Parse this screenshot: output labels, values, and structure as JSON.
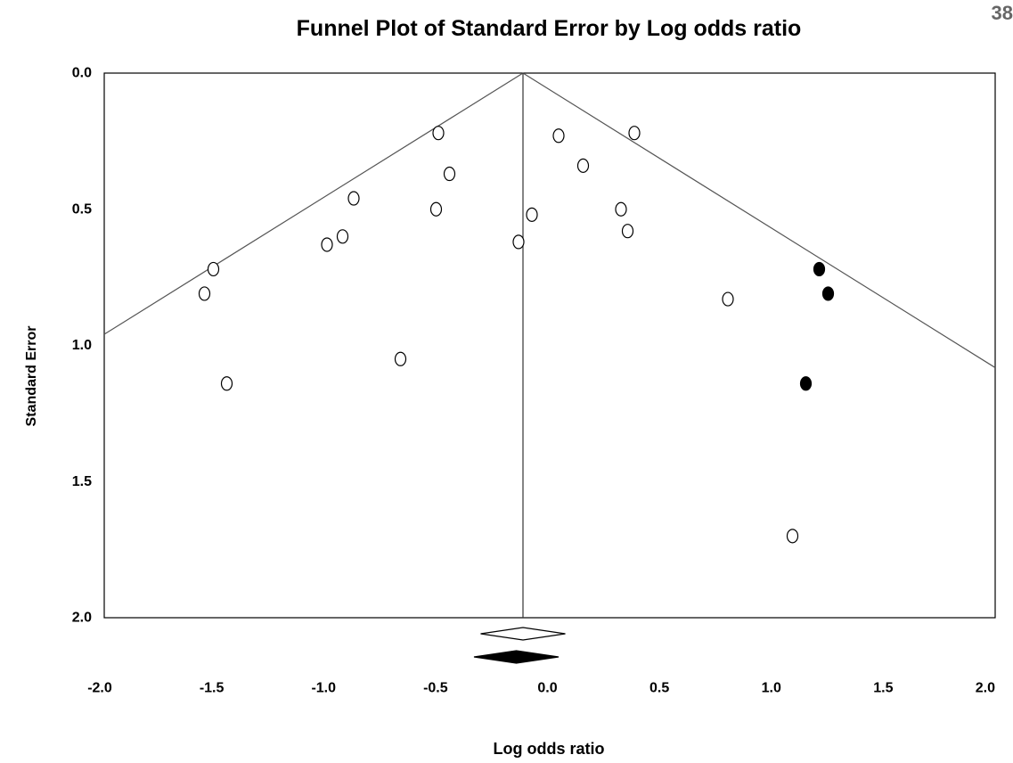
{
  "page_number": "38",
  "chart_data": {
    "type": "scatter",
    "title": "Funnel Plot of Standard Error by Log odds ratio",
    "xlabel": "Log odds ratio",
    "ylabel": "Standard Error",
    "xlim": [
      -2.0,
      2.0
    ],
    "ylim": [
      0.0,
      2.0
    ],
    "y_inverted": true,
    "x_ticks": [
      "-2.0",
      "-1.5",
      "-1.0",
      "-0.5",
      "0.0",
      "0.5",
      "1.0",
      "1.5",
      "2.0"
    ],
    "y_ticks": [
      "0.0",
      "0.5",
      "1.0",
      "1.5",
      "2.0"
    ],
    "grid": false,
    "funnel": {
      "apex_x": -0.12,
      "apex_y": 0.0,
      "half_width_factor": 1.96
    },
    "series": [
      {
        "marker": "open-circle",
        "points": [
          [
            -0.5,
            0.22
          ],
          [
            -0.45,
            0.37
          ],
          [
            0.04,
            0.23
          ],
          [
            0.38,
            0.22
          ],
          [
            0.15,
            0.34
          ],
          [
            -0.88,
            0.46
          ],
          [
            -0.51,
            0.5
          ],
          [
            -0.08,
            0.52
          ],
          [
            0.32,
            0.5
          ],
          [
            0.35,
            0.58
          ],
          [
            -0.93,
            0.6
          ],
          [
            -1.0,
            0.63
          ],
          [
            -0.14,
            0.62
          ],
          [
            -1.51,
            0.72
          ],
          [
            -1.55,
            0.81
          ],
          [
            0.8,
            0.83
          ],
          [
            -0.67,
            1.05
          ],
          [
            -1.45,
            1.14
          ],
          [
            1.09,
            1.7
          ]
        ]
      },
      {
        "marker": "filled-circle",
        "points": [
          [
            1.21,
            0.72
          ],
          [
            1.25,
            0.81
          ],
          [
            1.15,
            1.14
          ]
        ]
      }
    ],
    "summary_diamonds": [
      {
        "fill": "open",
        "center": -0.12,
        "half_width": 0.19
      },
      {
        "fill": "filled",
        "center": -0.15,
        "half_width": 0.19
      }
    ],
    "colors": {
      "axis": "#000000",
      "funnel": "#555555",
      "marker_open": "#ffffff",
      "marker_filled": "#000000"
    }
  }
}
